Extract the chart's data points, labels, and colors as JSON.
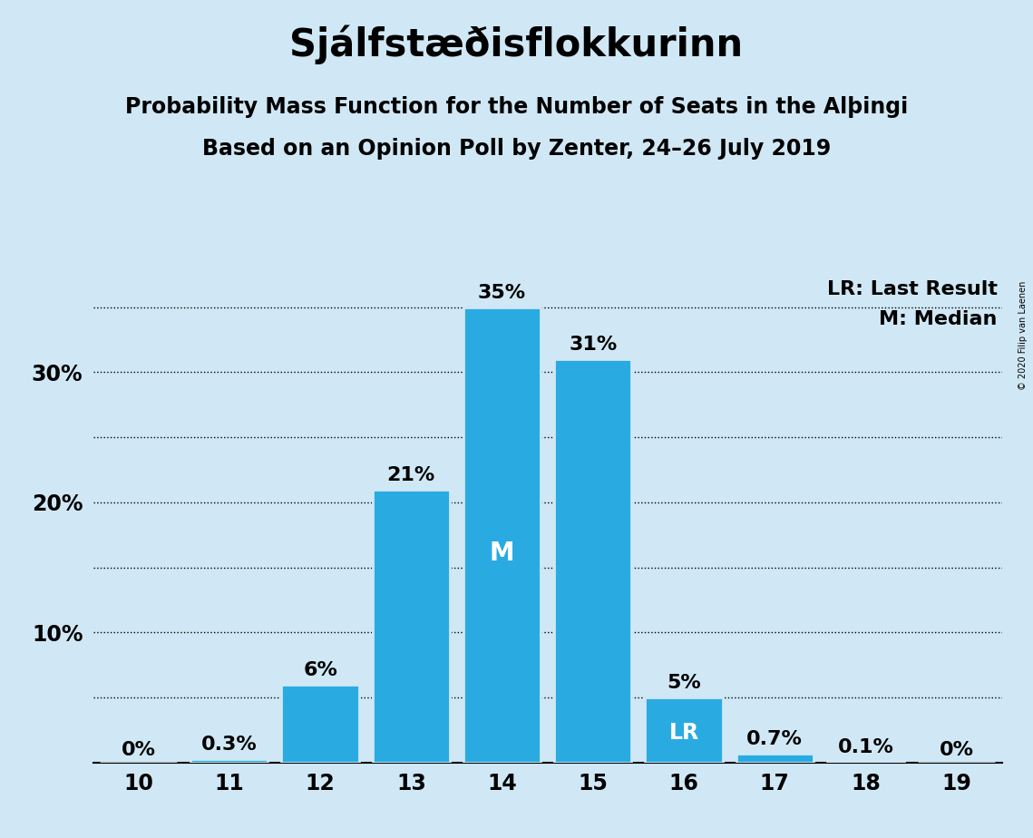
{
  "title": "Sjálfstæðisflokkurinn",
  "subtitle1": "Probability Mass Function for the Number of Seats in the Alþingi",
  "subtitle2": "Based on an Opinion Poll by Zenter, 24–26 July 2019",
  "copyright": "© 2020 Filip van Laenen",
  "seats": [
    10,
    11,
    12,
    13,
    14,
    15,
    16,
    17,
    18,
    19
  ],
  "probabilities": [
    0.0,
    0.3,
    6.0,
    21.0,
    35.0,
    31.0,
    5.0,
    0.7,
    0.1,
    0.0
  ],
  "labels": [
    "0%",
    "0.3%",
    "6%",
    "21%",
    "35%",
    "31%",
    "5%",
    "0.7%",
    "0.1%",
    "0%"
  ],
  "bar_color": "#29ABE2",
  "background_color": "#D0E8F5",
  "median_seat": 14,
  "last_result_seat": 16,
  "median_label": "M",
  "last_result_label": "LR",
  "legend_lr": "LR: Last Result",
  "legend_m": "M: Median",
  "ytick_labeled": [
    10,
    20,
    30
  ],
  "ytick_dotted": [
    5,
    10,
    15,
    20,
    25,
    30,
    35
  ],
  "ylim": [
    0,
    38
  ],
  "title_fontsize": 30,
  "subtitle_fontsize": 17,
  "tick_fontsize": 17,
  "bar_label_fontsize": 16,
  "inside_label_fontsize": 20,
  "legend_fontsize": 16
}
